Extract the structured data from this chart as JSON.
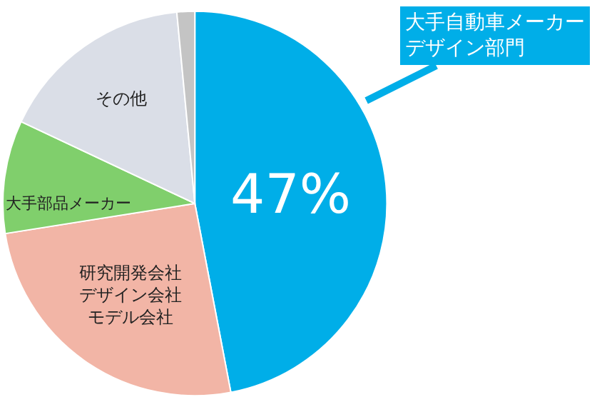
{
  "chart_data": {
    "type": "pie",
    "categories": [
      "大手自動車メーカーデザイン部門",
      "研究開発会社デザイン会社モデル会社",
      "大手部品メーカー",
      "その他",
      null
    ],
    "values": [
      47,
      25.5,
      9.5,
      16.5,
      1.5
    ],
    "colors": [
      "#00aee8",
      "#f2b5a6",
      "#80cf6c",
      "#dadee7",
      "#c4c4c4"
    ],
    "value_labels": [
      "47%",
      null,
      null,
      null,
      null
    ]
  }
}
